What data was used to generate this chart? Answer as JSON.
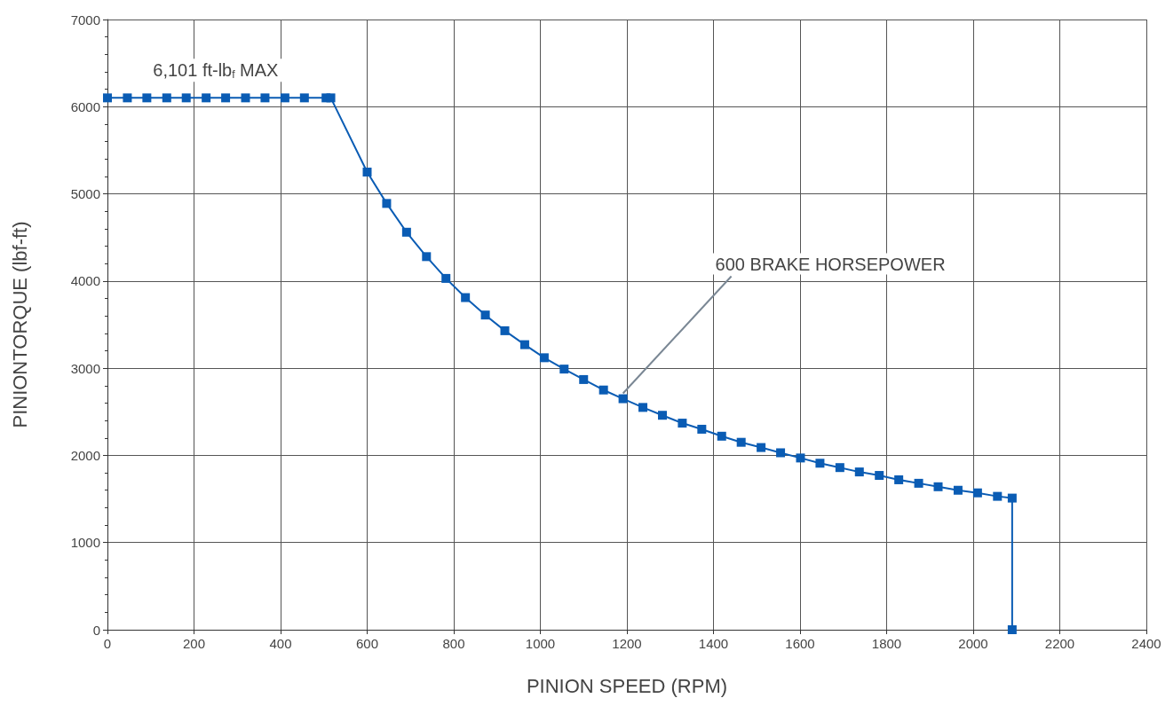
{
  "chart_data": {
    "type": "line",
    "xlabel": "PINION SPEED (RPM)",
    "ylabel": "PINIONTORQUE (lbf-ft)",
    "xlim": [
      0,
      2400
    ],
    "xticks": [
      0,
      200,
      400,
      600,
      800,
      1000,
      1200,
      1400,
      1600,
      1800,
      2000,
      2200,
      2400
    ],
    "ylim": [
      0,
      7000
    ],
    "yticks": [
      0,
      1000,
      2000,
      3000,
      4000,
      5000,
      6000,
      7000
    ],
    "grid": true,
    "marker": "square",
    "line_style": "solid",
    "series": [
      {
        "color": "#0a5cb4",
        "x": [
          0,
          46,
          91,
          137,
          182,
          228,
          273,
          319,
          364,
          410,
          455,
          505,
          516,
          600,
          645,
          691,
          737,
          782,
          827,
          873,
          918,
          964,
          1009,
          1055,
          1100,
          1146,
          1191,
          1237,
          1282,
          1328,
          1373,
          1419,
          1464,
          1510,
          1555,
          1601,
          1646,
          1692,
          1737,
          1783,
          1828,
          1874,
          1919,
          1965,
          2010,
          2056,
          2090,
          2090
        ],
        "values": [
          6101,
          6101,
          6101,
          6101,
          6101,
          6101,
          6101,
          6101,
          6101,
          6101,
          6101,
          6101,
          6101,
          5250,
          4890,
          4560,
          4280,
          4030,
          3810,
          3610,
          3430,
          3270,
          3120,
          2990,
          2870,
          2750,
          2650,
          2550,
          2460,
          2370,
          2300,
          2220,
          2150,
          2090,
          2030,
          1970,
          1910,
          1860,
          1810,
          1770,
          1720,
          1680,
          1640,
          1600,
          1570,
          1530,
          1510,
          0
        ]
      }
    ],
    "annotations": [
      {
        "text": "6,101 ft-lb$_{f}$ MAX",
        "x": 250,
        "y": 6101
      },
      {
        "text": "600 BRAKE HORSEPOWER",
        "x": 1191,
        "y": 2650
      }
    ]
  }
}
